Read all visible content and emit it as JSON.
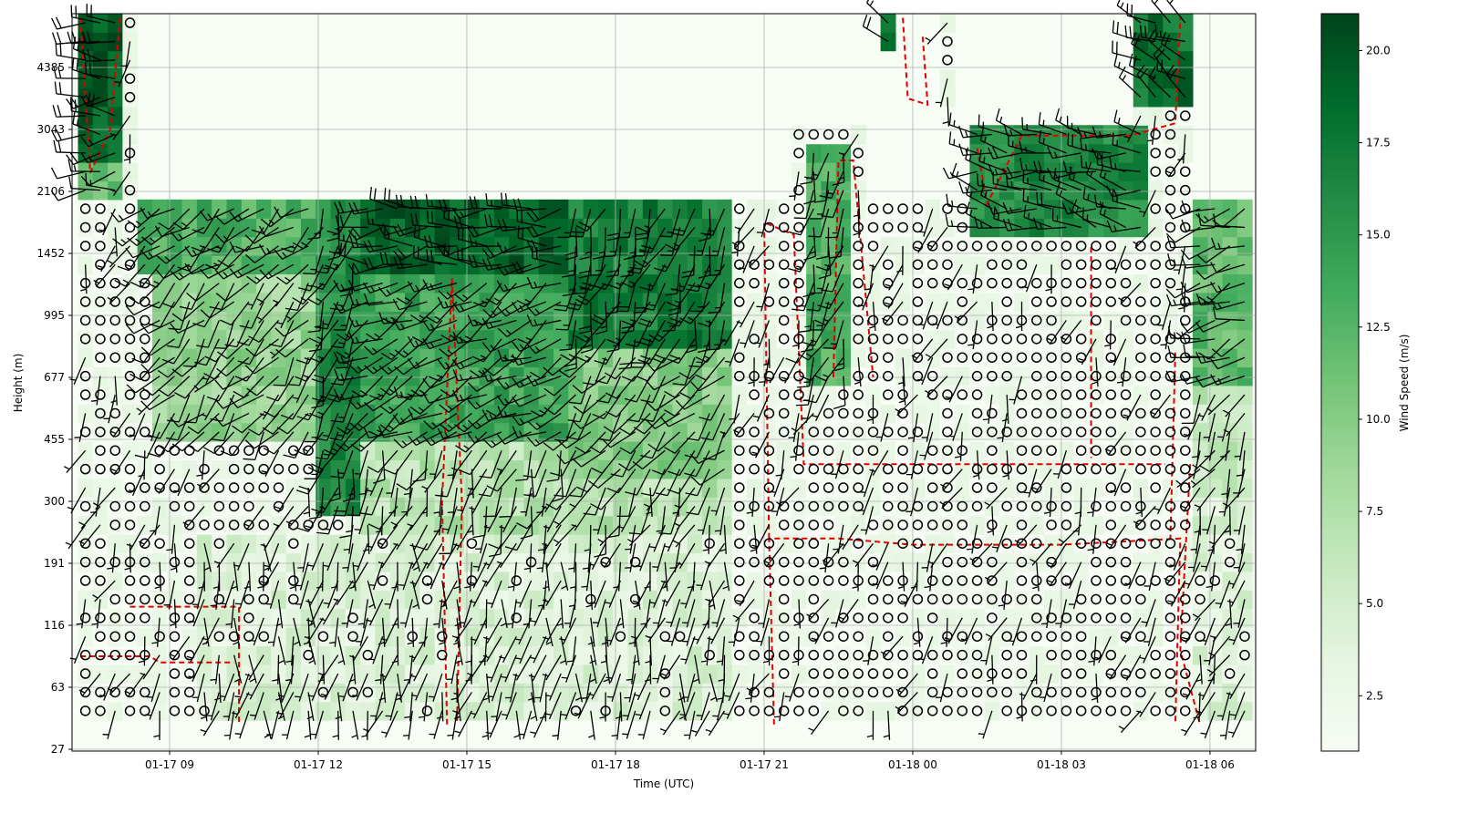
{
  "chart_data": {
    "type": "heatmap",
    "subtype": "time-height wind speed with wind barbs",
    "xlabel": "Time (UTC)",
    "ylabel": "Height (m)",
    "colorbar_label": "Wind Speed (m/s)",
    "colormap": "Greens",
    "clim": [
      1.0,
      21.0
    ],
    "colorbar_ticks": [
      "2.5",
      "5.0",
      "7.5",
      "10.0",
      "12.5",
      "15.0",
      "17.5",
      "20.0"
    ],
    "colorbar_tick_values": [
      2.5,
      5,
      7.5,
      10,
      12.5,
      15,
      17.5,
      20
    ],
    "x_hours_range": [
      7.03,
      30.94
    ],
    "x_ticks": [
      {
        "hour": 9,
        "label": "01-17 09"
      },
      {
        "hour": 12,
        "label": "01-17 12"
      },
      {
        "hour": 15,
        "label": "01-17 15"
      },
      {
        "hour": 18,
        "label": "01-17 18"
      },
      {
        "hour": 21,
        "label": "01-17 21"
      },
      {
        "hour": 24,
        "label": "01-18 00"
      },
      {
        "hour": 27,
        "label": "01-18 03"
      },
      {
        "hour": 30,
        "label": "01-18 06"
      }
    ],
    "y_ticks": [
      "27",
      "63",
      "116",
      "191",
      "300",
      "455",
      "677",
      "995",
      "1452",
      "2106",
      "3043",
      "4385"
    ],
    "y_range_tick_units": [
      -0.03,
      11.87
    ],
    "grid": true,
    "time_step_hours": 0.3,
    "level_step_tick_units": 0.3,
    "coverage": [
      {
        "t": [
          7.1,
          8.3
        ],
        "h": [
          0.6,
          11.9
        ]
      },
      {
        "t": [
          8.3,
          21.5
        ],
        "h": [
          0.6,
          8.8
        ]
      },
      {
        "t": [
          21.5,
          23.2
        ],
        "h": [
          0.6,
          10.0
        ]
      },
      {
        "t": [
          23.2,
          25.3
        ],
        "h": [
          0.6,
          8.8
        ]
      },
      {
        "t": [
          23.3,
          23.8
        ],
        "h": [
          11.3,
          11.9
        ]
      },
      {
        "t": [
          24.5,
          24.9
        ],
        "h": [
          10.4,
          11.9
        ]
      },
      {
        "t": [
          25.3,
          28.7
        ],
        "h": [
          0.6,
          10.2
        ]
      },
      {
        "t": [
          28.4,
          29.7
        ],
        "h": [
          0.6,
          11.9
        ]
      },
      {
        "t": [
          29.7,
          30.9
        ],
        "h": [
          0.6,
          8.8
        ]
      }
    ],
    "speed_regions": [
      {
        "t": [
          7.1,
          8.0
        ],
        "h": [
          9.5,
          11.9
        ],
        "speed": 19,
        "dir": 270
      },
      {
        "t": [
          7.1,
          8.1
        ],
        "h": [
          8.8,
          9.5
        ],
        "speed": 12,
        "dir": 260
      },
      {
        "t": [
          8.3,
          12.0
        ],
        "h": [
          7.6,
          8.8
        ],
        "speed": 13,
        "dir": 235
      },
      {
        "t": [
          8.8,
          12.0
        ],
        "h": [
          5.0,
          7.6
        ],
        "speed": 9,
        "dir": 220
      },
      {
        "t": [
          12.0,
          13.0
        ],
        "h": [
          3.7,
          8.8
        ],
        "speed": 16,
        "dir": 200
      },
      {
        "t": [
          13.0,
          17.0
        ],
        "h": [
          7.8,
          8.8
        ],
        "speed": 19,
        "dir": 265
      },
      {
        "t": [
          13.0,
          17.0
        ],
        "h": [
          5.0,
          7.8
        ],
        "speed": 14,
        "dir": 240
      },
      {
        "t": [
          17.0,
          20.5
        ],
        "h": [
          6.5,
          8.8
        ],
        "speed": 17,
        "dir": 200
      },
      {
        "t": [
          17.0,
          20.5
        ],
        "h": [
          4.5,
          6.5
        ],
        "speed": 10,
        "dir": 220
      },
      {
        "t": [
          13.0,
          20.5
        ],
        "h": [
          3.5,
          5.0
        ],
        "speed": 7,
        "dir": 200
      },
      {
        "t": [
          9.5,
          20.5
        ],
        "h": [
          0.6,
          3.5
        ],
        "speed": 4,
        "dir": 190
      },
      {
        "t": [
          21.8,
          22.9
        ],
        "h": [
          6.0,
          9.8
        ],
        "speed": 13,
        "dir": 200
      },
      {
        "t": [
          23.5,
          24.2
        ],
        "h": [
          10.4,
          11.9
        ],
        "speed": 18,
        "dir": 320
      },
      {
        "t": [
          25.3,
          28.8
        ],
        "h": [
          8.3,
          10.2
        ],
        "speed": 16,
        "dir": 280
      },
      {
        "t": [
          28.4,
          29.7
        ],
        "h": [
          10.4,
          11.9
        ],
        "speed": 18,
        "dir": 300
      },
      {
        "t": [
          29.7,
          30.9
        ],
        "h": [
          6.0,
          8.8
        ],
        "speed": 12,
        "dir": 250
      },
      {
        "t": [
          29.7,
          30.9
        ],
        "h": [
          4.0,
          6.0
        ],
        "speed": 6,
        "dir": 210
      },
      {
        "t": [
          29.6,
          30.9
        ],
        "h": [
          0.6,
          4.0
        ],
        "speed": 4,
        "dir": 200
      }
    ],
    "contours_level": "red dashed"
  }
}
